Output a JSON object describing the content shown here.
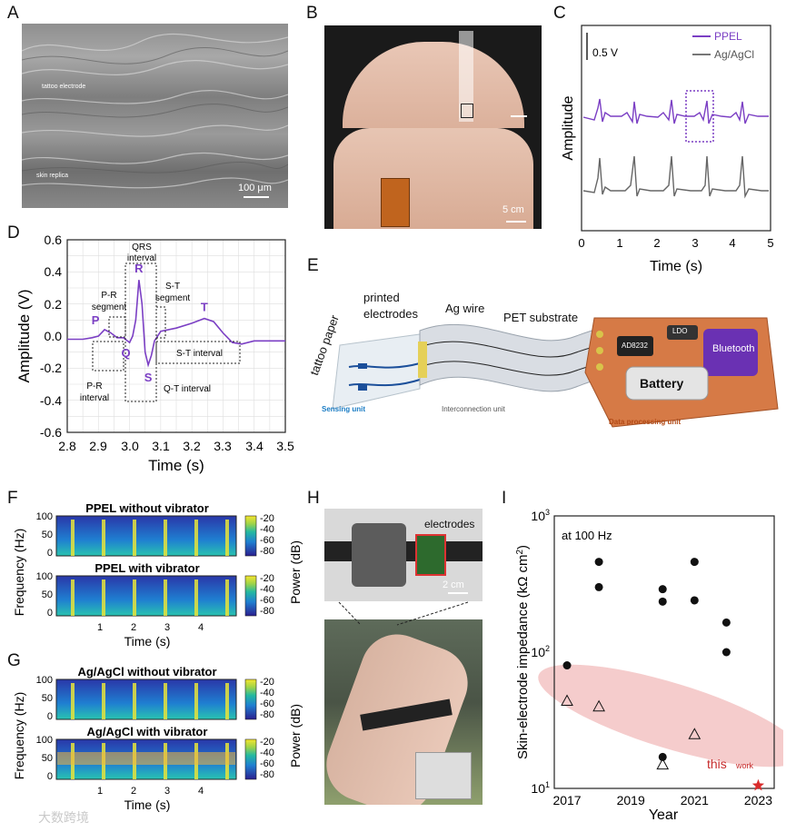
{
  "panels": {
    "A": {
      "label": "A",
      "text_top": "tattoo electrode",
      "text_bottom": "skin replica",
      "scale": "100 μm"
    },
    "B": {
      "label": "B",
      "scale": "5 cm"
    },
    "C": {
      "label": "C",
      "scale_v": "0.5 V",
      "legend": [
        "PPEL",
        "Ag/AgCl"
      ],
      "ylabel": "Amplitude",
      "xlabel": "Time (s)",
      "xticks": [
        "0",
        "1",
        "2",
        "3",
        "4",
        "5"
      ]
    },
    "D": {
      "label": "D",
      "ylabel": "Amplitude (V)",
      "xlabel": "Time (s)",
      "xticks": [
        "2.8",
        "2.9",
        "3.0",
        "3.1",
        "3.2",
        "3.3",
        "3.4",
        "3.5"
      ],
      "yticks": [
        "0.6",
        "0.4",
        "0.2",
        "0.0",
        "-0.2",
        "-0.4",
        "-0.6"
      ],
      "annotations": {
        "qrs": "QRS\ninterval",
        "pr_seg": "P-R\nsegment",
        "st_seg": "S-T\nsegment",
        "st_int": "S-T interval",
        "pr_int": "P-R\ninterval",
        "qt_int": "Q-T interval",
        "P": "P",
        "Q": "Q",
        "R": "R",
        "S": "S",
        "T": "T"
      }
    },
    "E": {
      "label": "E",
      "printed": "printed",
      "electrodes": "electrodes",
      "ag_wire": "Ag wire",
      "pet": "PET substrate",
      "tattoo": "tattoo paper",
      "sensing": "Sensing unit",
      "interconnect": "Interconnection unit",
      "dpu": "Data processing unit",
      "chip1": "AD8232",
      "chip2": "LDO",
      "bluetooth": "Bluetooth",
      "battery": "Battery"
    },
    "F": {
      "label": "F",
      "title1": "PPEL without vibrator",
      "title2": "PPEL with vibrator",
      "ylabel": "Frequency (Hz)",
      "xlabel": "Time (s)",
      "cbar_label": "Power (dB)",
      "cticks": [
        "-20",
        "-40",
        "-60",
        "-80"
      ],
      "yticks": [
        "100",
        "50",
        "0"
      ],
      "xticks": [
        "1",
        "2",
        "3",
        "4"
      ]
    },
    "G": {
      "label": "G",
      "title1": "Ag/AgCl without vibrator",
      "title2": "Ag/AgCl with vibrator",
      "ylabel": "Frequency (Hz)",
      "xlabel": "Time (s)",
      "cbar_label": "Power (dB)",
      "cticks": [
        "-20",
        "-40",
        "-60",
        "-80"
      ],
      "yticks": [
        "100",
        "50",
        "0"
      ],
      "xticks": [
        "1",
        "2",
        "3",
        "4"
      ]
    },
    "H": {
      "label": "H",
      "electrodes": "electrodes",
      "scale": "2 cm"
    },
    "I": {
      "label": "I",
      "note": "at 100 Hz",
      "ylabel": "Skin-electrode impedance (kΩ cm²)",
      "xlabel": "Year",
      "xticks": [
        "2017",
        "2019",
        "2021",
        "2023"
      ],
      "yticks": [
        "10³",
        "10²",
        "10¹"
      ],
      "this": "this",
      "work": "work"
    }
  },
  "watermark": "大数跨境",
  "chart_data": [
    {
      "type": "line",
      "panel": "C",
      "x": [
        0,
        1,
        2,
        3,
        4,
        5
      ],
      "series": [
        {
          "name": "PPEL",
          "color": "#7b3fc4"
        },
        {
          "name": "Ag/AgCl",
          "color": "#777777"
        }
      ],
      "xlabel": "Time (s)",
      "ylabel": "Amplitude",
      "xlim": [
        0,
        5
      ]
    },
    {
      "type": "line",
      "panel": "D",
      "xlabel": "Time (s)",
      "ylabel": "Amplitude (V)",
      "xlim": [
        2.8,
        3.5
      ],
      "ylim": [
        -0.6,
        0.6
      ],
      "x": [
        2.8,
        2.85,
        2.88,
        2.9,
        2.92,
        2.94,
        2.96,
        2.98,
        3.0,
        3.01,
        3.02,
        3.03,
        3.04,
        3.05,
        3.06,
        3.07,
        3.08,
        3.1,
        3.15,
        3.2,
        3.24,
        3.27,
        3.3,
        3.33,
        3.36,
        3.4,
        3.45,
        3.5
      ],
      "y": [
        -0.02,
        -0.02,
        -0.01,
        0.0,
        0.04,
        0.02,
        -0.01,
        -0.01,
        -0.04,
        0.0,
        0.1,
        0.35,
        0.2,
        -0.1,
        -0.18,
        -0.12,
        -0.03,
        0.03,
        0.05,
        0.08,
        0.11,
        0.09,
        0.02,
        -0.04,
        -0.05,
        -0.03,
        -0.03,
        -0.03
      ],
      "points": {
        "P": [
          2.92,
          0.04
        ],
        "Q": [
          3.0,
          -0.04
        ],
        "R": [
          3.03,
          0.35
        ],
        "S": [
          3.06,
          -0.18
        ],
        "T": [
          3.24,
          0.11
        ]
      }
    },
    {
      "type": "scatter",
      "panel": "I",
      "xlabel": "Year",
      "ylabel": "Skin-electrode impedance (kΩ cm²)",
      "xlim": [
        2016.6,
        2023.5
      ],
      "ylim": [
        10,
        1000
      ],
      "log_y": true,
      "series": [
        {
          "marker": "filled-circle",
          "points": [
            [
              2017,
              80
            ],
            [
              2018,
              460
            ],
            [
              2018,
              300
            ],
            [
              2020,
              290
            ],
            [
              2020,
              235
            ],
            [
              2020,
              17
            ],
            [
              2021,
              460
            ],
            [
              2021,
              240
            ],
            [
              2022,
              165
            ],
            [
              2022,
              100
            ]
          ]
        },
        {
          "marker": "open-triangle",
          "points": [
            [
              2017,
              44
            ],
            [
              2018,
              40
            ],
            [
              2020,
              15
            ],
            [
              2021,
              25
            ]
          ]
        },
        {
          "marker": "star",
          "color": "#d92b2b",
          "points": [
            [
              2023,
              10.5
            ]
          ]
        }
      ]
    }
  ]
}
